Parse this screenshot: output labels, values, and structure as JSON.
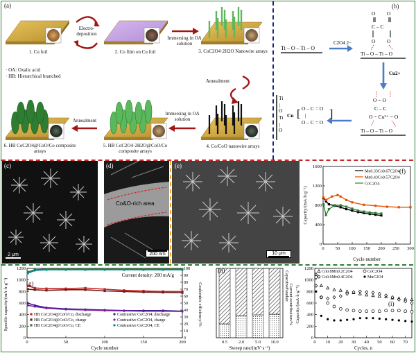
{
  "panel_a": {
    "label": "(a)",
    "steps": [
      {
        "caption": "1. Cu foil"
      },
      {
        "caption": "2. Co film on Cu foil"
      },
      {
        "caption": "3. CoC2O4·2H2O Nanowire arrays"
      },
      {
        "caption": "4. Co/CoO nanowire arrays"
      },
      {
        "caption": "5. HB CoC2O4·2H2O@CoO/Co composite arrays"
      },
      {
        "caption": "6. HB CoC2O4@CoO/Co composite arrays"
      }
    ],
    "arrows": [
      "Electro- deposition",
      "Immersing in OA solution",
      "Annealment",
      "Immersing in OA solution",
      "Annealment"
    ],
    "legend": [
      "· OA: Oxalic acid",
      "· HB: Hierarchical branched"
    ]
  },
  "panel_b": {
    "label": "(b)",
    "oxalate_label": "C2O4 2−",
    "cu_label": "Cu2+",
    "cu_center": "Cu"
  },
  "panel_c": {
    "label": "(c)",
    "scale": "2 μm"
  },
  "panel_d": {
    "label": "(d)",
    "annotation": "Co&O-rich area",
    "scale": "200 nm"
  },
  "panel_e": {
    "label": "(e)",
    "scale": "10 μm"
  },
  "panel_f": {
    "label": "(f)"
  },
  "panel_g": {
    "label": "(g)"
  },
  "panel_h": {
    "label": "(h)"
  },
  "panel_i": {
    "label": "(i)"
  },
  "colors": {
    "frame": "#2e7d32",
    "divider": "#c62828",
    "divider_v": "#1a237e"
  },
  "chart_data": [
    {
      "id": "f",
      "type": "line",
      "xlabel": "Cycle number",
      "ylabel": "Capacity/(mA·h·g⁻¹)",
      "xlim": [
        0,
        300
      ],
      "ylim": [
        0,
        1600
      ],
      "xticks": [
        0,
        50,
        100,
        150,
        200,
        250,
        300
      ],
      "yticks": [
        0,
        400,
        800,
        1200,
        1600
      ],
      "legend_position": "top-right",
      "series": [
        {
          "name": "Mn0.33Co0.67C2O4",
          "color": "#000000",
          "x": [
            1,
            10,
            20,
            40,
            60,
            80,
            100,
            120,
            140,
            160,
            180,
            200
          ],
          "y": [
            950,
            880,
            820,
            790,
            760,
            720,
            690,
            660,
            640,
            620,
            605,
            590
          ]
        },
        {
          "name": "Mn0.43Co0.57C2O4",
          "color": "#e65100",
          "x": [
            1,
            10,
            30,
            50,
            60,
            80,
            100,
            140,
            180,
            220,
            260,
            300
          ],
          "y": [
            960,
            910,
            980,
            1010,
            980,
            910,
            860,
            810,
            790,
            770,
            760,
            760
          ]
        },
        {
          "name": "CoC2O4",
          "color": "#2e7d32",
          "x": [
            1,
            10,
            20,
            40,
            60,
            80,
            100,
            120,
            140,
            160,
            180,
            200
          ],
          "y": [
            820,
            600,
            720,
            800,
            800,
            770,
            730,
            690,
            670,
            650,
            640,
            630
          ]
        }
      ]
    },
    {
      "id": "g",
      "type": "scatter",
      "annotation": "Current density: 200 mA/g",
      "xlabel": "Cycle number",
      "ylabel": "Specific capacity/(mA·h·g⁻¹)",
      "ylabel2": "Coulombic efficiency/%",
      "xlim": [
        0,
        200
      ],
      "ylim": [
        0,
        1200
      ],
      "ylim2": [
        0,
        100
      ],
      "xticks": [
        0,
        50,
        100,
        150,
        200
      ],
      "yticks": [
        0,
        200,
        400,
        600,
        800,
        1000,
        1200
      ],
      "yticks2": [
        0,
        10,
        20,
        30,
        40,
        50,
        60,
        70,
        80,
        90,
        100
      ],
      "series": [
        {
          "name": "HB CoC2O4@CoO/Co, discharge",
          "color": "#c62828",
          "marker": "square",
          "x": [
            1,
            10,
            25,
            50,
            75,
            100,
            125,
            150,
            175,
            200
          ],
          "y": [
            900,
            860,
            850,
            850,
            860,
            840,
            820,
            810,
            800,
            800
          ]
        },
        {
          "name": "HB CoC2O4@CoO/Co, charge",
          "color": "#6d1b1b",
          "marker": "square",
          "x": [
            1,
            10,
            25,
            50,
            75,
            100,
            125,
            150,
            175,
            200
          ],
          "y": [
            840,
            830,
            820,
            830,
            830,
            810,
            800,
            790,
            785,
            780
          ]
        },
        {
          "name": "HB CoC2O4@CoO/Co, CE",
          "color": "#2e7d32",
          "marker": "square",
          "axis": "right",
          "x": [
            1,
            10,
            25,
            50,
            75,
            100,
            125,
            150,
            175,
            200
          ],
          "y": [
            95,
            98,
            99,
            99,
            99,
            99,
            99,
            99,
            99,
            99
          ]
        },
        {
          "name": "Contrastive CoC2O4, discharge",
          "color": "#311b92",
          "marker": "circle",
          "x": [
            1,
            10,
            25,
            50,
            75,
            100,
            125,
            150,
            175,
            200
          ],
          "y": [
            600,
            560,
            520,
            500,
            490,
            480,
            470,
            470,
            470,
            460
          ]
        },
        {
          "name": "Contrastive CoC2O4, charge",
          "color": "#7b1fa2",
          "marker": "circle",
          "x": [
            1,
            10,
            25,
            50,
            75,
            100,
            125,
            150,
            175,
            200
          ],
          "y": [
            560,
            540,
            510,
            490,
            480,
            470,
            465,
            460,
            460,
            455
          ]
        },
        {
          "name": "Contrastive CoC2O4, CE",
          "color": "#00838f",
          "marker": "circle",
          "axis": "right",
          "x": [
            1,
            10,
            25,
            50,
            75,
            100,
            125,
            150,
            175,
            200
          ],
          "y": [
            93,
            97,
            98,
            98,
            98,
            98,
            98,
            98,
            98,
            98
          ]
        }
      ]
    },
    {
      "id": "h",
      "type": "bar",
      "xlabel": "Sweep rate/(mV·s⁻¹)",
      "ylabel": "Current contribution/%",
      "categories": [
        "0.5",
        "2.0",
        "5.0",
        "10.0"
      ],
      "ylim": [
        0,
        100
      ],
      "yticks": [
        0,
        20,
        40,
        60,
        80,
        100
      ],
      "legend_position": "top-right",
      "series": [
        {
          "name": "Capacitive",
          "pattern": "dots",
          "values": [
            20,
            32,
            33,
            34
          ]
        },
        {
          "name": "Faradaic",
          "pattern": "stripes",
          "values": [
            80,
            68,
            67,
            66
          ]
        }
      ]
    },
    {
      "id": "i",
      "type": "scatter",
      "xlabel": "Cycles, n",
      "ylabel": "Capacity/(mA·h·g⁻¹)",
      "xlim": [
        0,
        75
      ],
      "ylim": [
        0,
        1200
      ],
      "xticks": [
        0,
        10,
        20,
        30,
        40,
        50,
        60,
        70
      ],
      "yticks": [
        0,
        200,
        400,
        600,
        800,
        1000,
        1200
      ],
      "legend_position": "top",
      "series": [
        {
          "name": "Co0.8Mn0.2C2O4",
          "marker": "triangle",
          "x": [
            1,
            5,
            10,
            15,
            20,
            25,
            30,
            35,
            40,
            45,
            50,
            55,
            60,
            65,
            70,
            75
          ],
          "y": [
            1100,
            900,
            860,
            830,
            820,
            800,
            780,
            760,
            740,
            730,
            720,
            710,
            690,
            680,
            670,
            660
          ]
        },
        {
          "name": "CoC2O4",
          "marker": "open-circle",
          "x": [
            1,
            5,
            10,
            15,
            20,
            25,
            30,
            35,
            40,
            45,
            50,
            55,
            60,
            65,
            70,
            75
          ],
          "y": [
            1050,
            700,
            600,
            540,
            500,
            480,
            470,
            460,
            460,
            460,
            460,
            470,
            470,
            470,
            460,
            450
          ]
        },
        {
          "name": "Co0.6Mn0.4C2O4",
          "marker": "diamond",
          "x": [
            1,
            5,
            10,
            15,
            20,
            25,
            30,
            35,
            40,
            45,
            50,
            55,
            60,
            65,
            70,
            75
          ],
          "y": [
            900,
            700,
            680,
            700,
            720,
            760,
            790,
            800,
            790,
            780,
            760,
            730,
            700,
            660,
            630,
            600
          ]
        },
        {
          "name": "MnC2O4",
          "marker": "filled-circle",
          "x": [
            1,
            5,
            10,
            15,
            20,
            25,
            30,
            35,
            40,
            45,
            50,
            55,
            60,
            65,
            70,
            75
          ],
          "y": [
            800,
            380,
            320,
            300,
            300,
            310,
            320,
            340,
            340,
            340,
            330,
            320,
            310,
            300,
            290,
            280
          ]
        }
      ]
    }
  ]
}
